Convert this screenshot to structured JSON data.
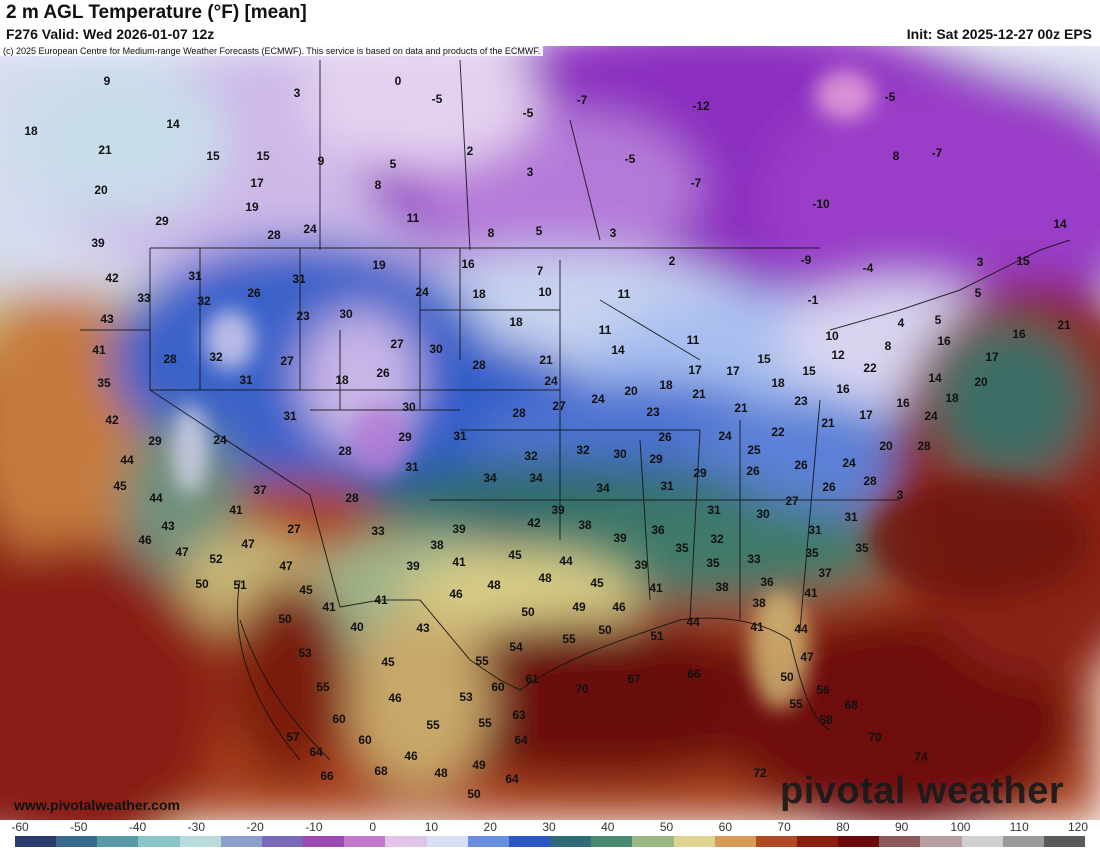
{
  "header": {
    "title": "2 m AGL Temperature (°F) [mean]",
    "valid": "F276 Valid: Wed 2026-01-07 12z",
    "init": "Init: Sat 2025-12-27 00z EPS"
  },
  "copyright": "(c) 2025 European Centre for Medium-range Weather Forecasts (ECMWF). This service is based on data and products of the ECMWF.",
  "website": "www.pivotalweather.com",
  "brand": "pivotal weather",
  "colorbar": {
    "ticks": [
      "-60",
      "-50",
      "-40",
      "-30",
      "-20",
      "-10",
      "0",
      "10",
      "20",
      "30",
      "40",
      "50",
      "60",
      "70",
      "80",
      "90",
      "100",
      "110",
      "120"
    ]
  },
  "map_labels": [
    [
      "9",
      107,
      81
    ],
    [
      "3",
      297,
      93
    ],
    [
      "0",
      398,
      81
    ],
    [
      "-5",
      437,
      99
    ],
    [
      "-7",
      582,
      100
    ],
    [
      "-5",
      528,
      113
    ],
    [
      "-12",
      701,
      106
    ],
    [
      "-5",
      890,
      97
    ],
    [
      "18",
      31,
      131
    ],
    [
      "14",
      173,
      124
    ],
    [
      "21",
      105,
      150
    ],
    [
      "15",
      213,
      156
    ],
    [
      "15",
      263,
      156
    ],
    [
      "9",
      321,
      161
    ],
    [
      "2",
      470,
      151
    ],
    [
      "5",
      393,
      164
    ],
    [
      "3",
      530,
      172
    ],
    [
      "-5",
      630,
      159
    ],
    [
      "8",
      896,
      156
    ],
    [
      "-7",
      937,
      153
    ],
    [
      "17",
      257,
      183
    ],
    [
      "8",
      378,
      185
    ],
    [
      "-7",
      696,
      183
    ],
    [
      "20",
      101,
      190
    ],
    [
      "19",
      252,
      207
    ],
    [
      "11",
      413,
      218
    ],
    [
      "-10",
      821,
      204
    ],
    [
      "29",
      162,
      221
    ],
    [
      "28",
      274,
      235
    ],
    [
      "24",
      310,
      229
    ],
    [
      "8",
      491,
      233
    ],
    [
      "5",
      539,
      231
    ],
    [
      "3",
      613,
      233
    ],
    [
      "14",
      1060,
      224
    ],
    [
      "39",
      98,
      243
    ],
    [
      "19",
      379,
      265
    ],
    [
      "16",
      468,
      264
    ],
    [
      "2",
      672,
      261
    ],
    [
      "-9",
      806,
      260
    ],
    [
      "-4",
      868,
      268
    ],
    [
      "15",
      1023,
      261
    ],
    [
      "7",
      540,
      271
    ],
    [
      "3",
      980,
      262
    ],
    [
      "42",
      112,
      278
    ],
    [
      "31",
      195,
      276
    ],
    [
      "31",
      299,
      279
    ],
    [
      "24",
      422,
      292
    ],
    [
      "18",
      479,
      294
    ],
    [
      "10",
      545,
      292
    ],
    [
      "11",
      624,
      294
    ],
    [
      "-1",
      813,
      300
    ],
    [
      "33",
      144,
      298
    ],
    [
      "32",
      204,
      301
    ],
    [
      "26",
      254,
      293
    ],
    [
      "23",
      303,
      316
    ],
    [
      "30",
      346,
      314
    ],
    [
      "18",
      516,
      322
    ],
    [
      "11",
      605,
      330
    ],
    [
      "5",
      978,
      293
    ],
    [
      "4",
      901,
      323
    ],
    [
      "5",
      938,
      320
    ],
    [
      "43",
      107,
      319
    ],
    [
      "27",
      397,
      344
    ],
    [
      "30",
      436,
      349
    ],
    [
      "14",
      618,
      350
    ],
    [
      "11",
      693,
      340
    ],
    [
      "10",
      832,
      336
    ],
    [
      "12",
      838,
      355
    ],
    [
      "8",
      888,
      346
    ],
    [
      "16",
      944,
      341
    ],
    [
      "16",
      1019,
      334
    ],
    [
      "21",
      1064,
      325
    ],
    [
      "41",
      99,
      350
    ],
    [
      "28",
      170,
      359
    ],
    [
      "32",
      216,
      357
    ],
    [
      "27",
      287,
      361
    ],
    [
      "26",
      383,
      373
    ],
    [
      "28",
      479,
      365
    ],
    [
      "21",
      546,
      360
    ],
    [
      "17",
      695,
      370
    ],
    [
      "17",
      733,
      371
    ],
    [
      "15",
      764,
      359
    ],
    [
      "15",
      809,
      371
    ],
    [
      "22",
      870,
      368
    ],
    [
      "17",
      992,
      357
    ],
    [
      "35",
      104,
      383
    ],
    [
      "31",
      246,
      380
    ],
    [
      "18",
      342,
      380
    ],
    [
      "24",
      551,
      381
    ],
    [
      "20",
      631,
      391
    ],
    [
      "18",
      666,
      385
    ],
    [
      "21",
      699,
      394
    ],
    [
      "18",
      778,
      383
    ],
    [
      "16",
      843,
      389
    ],
    [
      "14",
      935,
      378
    ],
    [
      "20",
      981,
      382
    ],
    [
      "30",
      409,
      407
    ],
    [
      "28",
      519,
      413
    ],
    [
      "27",
      559,
      406
    ],
    [
      "24",
      598,
      399
    ],
    [
      "23",
      653,
      412
    ],
    [
      "21",
      741,
      408
    ],
    [
      "23",
      801,
      401
    ],
    [
      "16",
      903,
      403
    ],
    [
      "18",
      952,
      398
    ],
    [
      "17",
      866,
      415
    ],
    [
      "21",
      828,
      423
    ],
    [
      "24",
      931,
      416
    ],
    [
      "42",
      112,
      420
    ],
    [
      "31",
      290,
      416
    ],
    [
      "29",
      405,
      437
    ],
    [
      "31",
      460,
      436
    ],
    [
      "26",
      665,
      437
    ],
    [
      "24",
      725,
      436
    ],
    [
      "22",
      778,
      432
    ],
    [
      "25",
      754,
      450
    ],
    [
      "28",
      924,
      446
    ],
    [
      "20",
      886,
      446
    ],
    [
      "29",
      155,
      441
    ],
    [
      "24",
      220,
      440
    ],
    [
      "28",
      345,
      451
    ],
    [
      "32",
      531,
      456
    ],
    [
      "32",
      583,
      450
    ],
    [
      "30",
      620,
      454
    ],
    [
      "29",
      656,
      459
    ],
    [
      "26",
      753,
      471
    ],
    [
      "26",
      801,
      465
    ],
    [
      "24",
      849,
      463
    ],
    [
      "28",
      870,
      481
    ],
    [
      "44",
      127,
      460
    ],
    [
      "31",
      412,
      467
    ],
    [
      "34",
      490,
      478
    ],
    [
      "34",
      536,
      478
    ],
    [
      "34",
      603,
      488
    ],
    [
      "29",
      700,
      473
    ],
    [
      "31",
      667,
      486
    ],
    [
      "26",
      829,
      487
    ],
    [
      "3",
      900,
      495
    ],
    [
      "45",
      120,
      486
    ],
    [
      "37",
      260,
      490
    ],
    [
      "44",
      156,
      498
    ],
    [
      "41",
      236,
      510
    ],
    [
      "28",
      352,
      498
    ],
    [
      "39",
      558,
      510
    ],
    [
      "31",
      714,
      510
    ],
    [
      "30",
      763,
      514
    ],
    [
      "27",
      792,
      501
    ],
    [
      "31",
      851,
      517
    ],
    [
      "43",
      168,
      526
    ],
    [
      "27",
      294,
      529
    ],
    [
      "33",
      378,
      531
    ],
    [
      "39",
      459,
      529
    ],
    [
      "42",
      534,
      523
    ],
    [
      "38",
      585,
      525
    ],
    [
      "36",
      658,
      530
    ],
    [
      "32",
      717,
      539
    ],
    [
      "31",
      815,
      530
    ],
    [
      "35",
      862,
      548
    ],
    [
      "46",
      145,
      540
    ],
    [
      "47",
      182,
      552
    ],
    [
      "47",
      248,
      544
    ],
    [
      "38",
      437,
      545
    ],
    [
      "39",
      620,
      538
    ],
    [
      "35",
      682,
      548
    ],
    [
      "35",
      713,
      563
    ],
    [
      "33",
      754,
      559
    ],
    [
      "35",
      812,
      553
    ],
    [
      "37",
      825,
      573
    ],
    [
      "52",
      216,
      559
    ],
    [
      "47",
      286,
      566
    ],
    [
      "39",
      413,
      566
    ],
    [
      "41",
      459,
      562
    ],
    [
      "45",
      515,
      555
    ],
    [
      "44",
      566,
      561
    ],
    [
      "48",
      545,
      578
    ],
    [
      "39",
      641,
      565
    ],
    [
      "36",
      767,
      582
    ],
    [
      "38",
      722,
      587
    ],
    [
      "41",
      811,
      593
    ],
    [
      "50",
      202,
      584
    ],
    [
      "51",
      240,
      585
    ],
    [
      "45",
      306,
      590
    ],
    [
      "48",
      494,
      585
    ],
    [
      "45",
      597,
      583
    ],
    [
      "41",
      656,
      588
    ],
    [
      "38",
      759,
      603
    ],
    [
      "41",
      329,
      607
    ],
    [
      "41",
      381,
      600
    ],
    [
      "46",
      456,
      594
    ],
    [
      "49",
      579,
      607
    ],
    [
      "46",
      619,
      607
    ],
    [
      "50",
      285,
      619
    ],
    [
      "40",
      357,
      627
    ],
    [
      "43",
      423,
      628
    ],
    [
      "50",
      528,
      612
    ],
    [
      "55",
      569,
      639
    ],
    [
      "50",
      605,
      630
    ],
    [
      "51",
      657,
      636
    ],
    [
      "44",
      693,
      622
    ],
    [
      "41",
      757,
      627
    ],
    [
      "44",
      801,
      629
    ],
    [
      "53",
      305,
      653
    ],
    [
      "45",
      388,
      662
    ],
    [
      "55",
      482,
      661
    ],
    [
      "54",
      516,
      647
    ],
    [
      "47",
      807,
      657
    ],
    [
      "55",
      323,
      687
    ],
    [
      "46",
      395,
      698
    ],
    [
      "60",
      498,
      687
    ],
    [
      "61",
      532,
      679
    ],
    [
      "70",
      582,
      689
    ],
    [
      "67",
      634,
      679
    ],
    [
      "66",
      694,
      674
    ],
    [
      "50",
      787,
      677
    ],
    [
      "56",
      823,
      690
    ],
    [
      "53",
      466,
      697
    ],
    [
      "60",
      339,
      719
    ],
    [
      "55",
      433,
      725
    ],
    [
      "55",
      485,
      723
    ],
    [
      "63",
      519,
      715
    ],
    [
      "55",
      796,
      704
    ],
    [
      "58",
      826,
      720
    ],
    [
      "68",
      851,
      705
    ],
    [
      "57",
      293,
      737
    ],
    [
      "60",
      365,
      740
    ],
    [
      "64",
      521,
      740
    ],
    [
      "70",
      875,
      737
    ],
    [
      "64",
      316,
      752
    ],
    [
      "46",
      411,
      756
    ],
    [
      "48",
      441,
      773
    ],
    [
      "49",
      479,
      765
    ],
    [
      "64",
      512,
      779
    ],
    [
      "74",
      921,
      757
    ],
    [
      "66",
      327,
      776
    ],
    [
      "68",
      381,
      771
    ],
    [
      "50",
      474,
      794
    ],
    [
      "72",
      760,
      773
    ]
  ]
}
